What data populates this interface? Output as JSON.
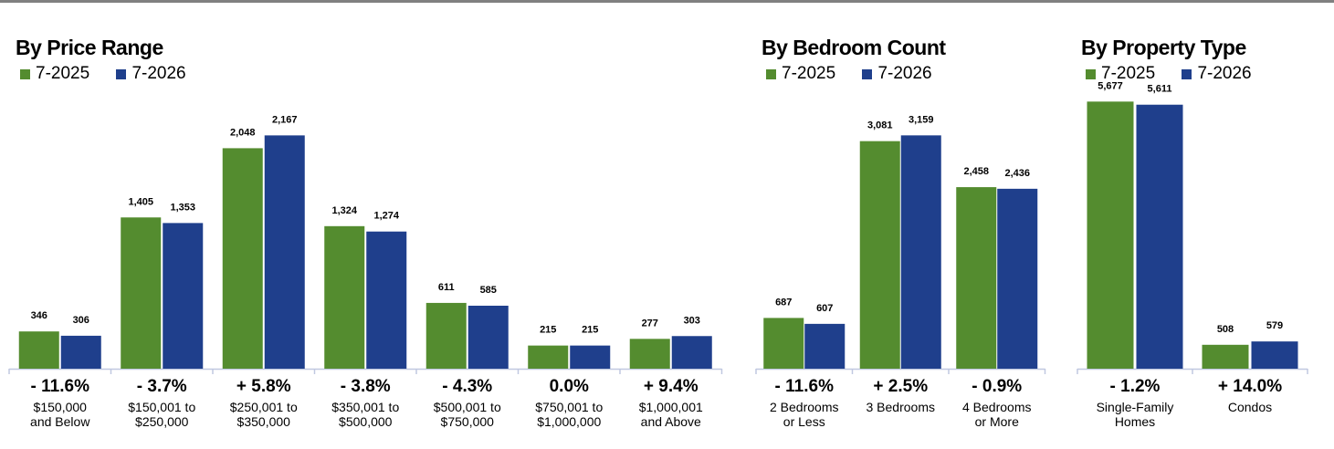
{
  "colors": {
    "series_2025": "#548c2f",
    "series_2026": "#1f3f8c",
    "axis": "#c0c8e0",
    "topline": "#808080"
  },
  "chart_data": [
    {
      "type": "bar",
      "title": "By Price Range",
      "series": [
        {
          "name": "7-2025",
          "values": [
            346,
            1405,
            2048,
            1324,
            611,
            215,
            277
          ]
        },
        {
          "name": "7-2026",
          "values": [
            306,
            1353,
            2167,
            1274,
            585,
            215,
            303
          ]
        }
      ],
      "categories": [
        [
          "$150,000",
          "and Below"
        ],
        [
          "$150,001 to",
          "$250,000"
        ],
        [
          "$250,001 to",
          "$350,000"
        ],
        [
          "$350,001 to",
          "$500,000"
        ],
        [
          "$500,001 to",
          "$750,000"
        ],
        [
          "$750,001 to",
          "$1,000,000"
        ],
        [
          "$1,000,001",
          "and Above"
        ]
      ],
      "changes": [
        "- 11.6%",
        "- 3.7%",
        "+ 5.8%",
        "- 3.8%",
        "- 4.3%",
        "0.0%",
        "+ 9.4%"
      ],
      "ylim": [
        0,
        2950
      ],
      "legend": "top-left",
      "grid": false
    },
    {
      "type": "bar",
      "title": "By Bedroom Count",
      "series": [
        {
          "name": "7-2025",
          "values": [
            687,
            3081,
            2458
          ]
        },
        {
          "name": "7-2026",
          "values": [
            607,
            3159,
            2436
          ]
        }
      ],
      "categories": [
        [
          "2 Bedrooms",
          "or Less"
        ],
        [
          "3 Bedrooms"
        ],
        [
          "4 Bedrooms",
          "or More"
        ]
      ],
      "changes": [
        "- 11.6%",
        "+ 2.5%",
        "- 0.9%"
      ],
      "ylim": [
        0,
        4300
      ],
      "legend": "top-left",
      "grid": false
    },
    {
      "type": "bar",
      "title": "By Property Type",
      "series": [
        {
          "name": "7-2025",
          "values": [
            5677,
            508
          ]
        },
        {
          "name": "7-2026",
          "values": [
            5611,
            579
          ]
        }
      ],
      "categories": [
        [
          "Single-Family",
          "Homes"
        ],
        [
          "Condos"
        ]
      ],
      "changes": [
        "- 1.2%",
        "+ 14.0%"
      ],
      "ylim": [
        0,
        6750
      ],
      "legend": "top-left",
      "grid": false
    }
  ]
}
